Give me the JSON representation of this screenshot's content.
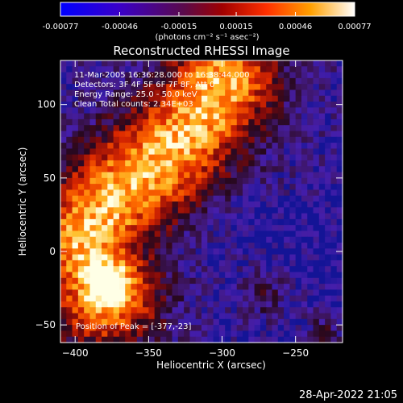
{
  "chart_data": {
    "type": "heatmap",
    "title": "Reconstructed RHESSI Image",
    "xlabel": "Heliocentric X (arcsec)",
    "ylabel": "Heliocentric Y (arcsec)",
    "xlim": [
      -410,
      -218
    ],
    "ylim": [
      -62,
      130
    ],
    "x_ticks": [
      -400,
      -350,
      -300,
      -250
    ],
    "y_ticks": [
      -50,
      0,
      50,
      100
    ],
    "colorbar": {
      "min": -0.00077,
      "max": 0.00077,
      "tick_values": [
        -0.00077,
        -0.00046,
        -0.00015,
        0.00015,
        0.00046,
        0.00077
      ],
      "tick_labels": [
        "-0.00077",
        "-0.00046",
        "-0.00015",
        "0.00015",
        "0.00046",
        "0.00077"
      ],
      "units_label": "(photons cm⁻² s⁻¹ asec⁻²)"
    },
    "annotations": [
      "11-Mar-2005 16:36:28.000 to 16:38:44.000",
      "Detectors: 3F 4F 5F 6F 7F 8F, Att 0",
      "Energy Range: 25.0 - 50.0 keV",
      "Clean     Total counts: 2.34E+03"
    ],
    "peak_label": "Position of Peak = [-377,-23]",
    "peak_position": [
      -377,
      -23
    ],
    "grid_size": [
      48,
      48
    ],
    "cell_size_arcsec": 4,
    "ridge": {
      "description": "bright emission band from lower-left to upper-middle",
      "points": [
        [
          -380,
          -28
        ],
        [
          -395,
          10
        ],
        [
          -370,
          40
        ],
        [
          -345,
          60
        ],
        [
          -320,
          85
        ],
        [
          -300,
          115
        ]
      ]
    },
    "grid": false,
    "timestamp": "28-Apr-2022 21:05"
  }
}
